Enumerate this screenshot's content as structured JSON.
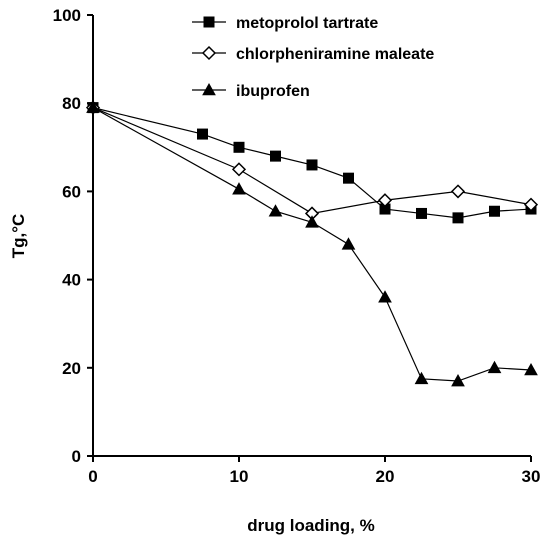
{
  "chart_data": {
    "type": "line",
    "xlabel": "drug loading, %",
    "ylabel": "Tg,°C",
    "xlim": [
      0,
      30
    ],
    "ylim": [
      0,
      100
    ],
    "xticks": [
      0,
      10,
      20,
      30
    ],
    "yticks": [
      0,
      20,
      40,
      60,
      80,
      100
    ],
    "xtick_labels": [
      "0",
      "10",
      "20",
      "30"
    ],
    "ytick_labels": [
      "0",
      "20",
      "40",
      "60",
      "80",
      "100"
    ],
    "grid": false,
    "legend_position": "top-right",
    "series": [
      {
        "name": "metoprolol tartrate",
        "marker": "filled-square",
        "color": "#000000",
        "x": [
          0,
          7.5,
          10,
          12.5,
          15,
          17.5,
          20,
          22.5,
          25,
          27.5,
          30
        ],
        "y": [
          79,
          73,
          70,
          68,
          66,
          63,
          56,
          55,
          54,
          55.5,
          56
        ]
      },
      {
        "name": "chlorpheniramine maleate",
        "marker": "open-diamond",
        "color": "#000000",
        "x": [
          0,
          10,
          15,
          20,
          25,
          30
        ],
        "y": [
          79,
          65,
          55,
          58,
          60,
          57
        ]
      },
      {
        "name": "ibuprofen",
        "marker": "filled-triangle",
        "color": "#000000",
        "x": [
          0,
          10,
          12.5,
          15,
          17.5,
          20,
          22.5,
          25,
          27.5,
          30
        ],
        "y": [
          79,
          60.5,
          55.5,
          53,
          48,
          36,
          17.5,
          17,
          20,
          19.5
        ]
      }
    ]
  }
}
